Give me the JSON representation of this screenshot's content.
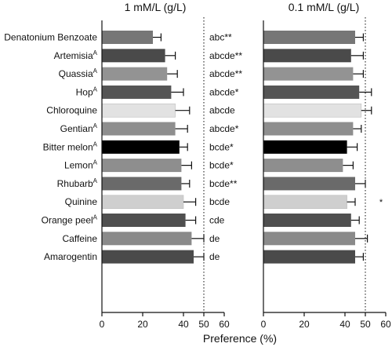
{
  "chart_data": {
    "type": "bar",
    "orientation": "horizontal",
    "xlabel": "Preference (%)",
    "xlim": [
      0,
      60
    ],
    "xticks": [
      0,
      20,
      40,
      50,
      60
    ],
    "reference_line": 50,
    "categories": [
      {
        "name": "Denatonium Benzoate",
        "sup": "",
        "color": "#767676",
        "letters": "abc**"
      },
      {
        "name": "Artemisia",
        "sup": "A",
        "color": "#4a4a4a",
        "letters": "abcde**"
      },
      {
        "name": "Quassia",
        "sup": "A",
        "color": "#939393",
        "letters": "abcde**"
      },
      {
        "name": "Hop",
        "sup": "A",
        "color": "#555555",
        "letters": "abcde*"
      },
      {
        "name": "Chloroquine",
        "sup": "",
        "color": "#e2e2e2",
        "letters": "abcde"
      },
      {
        "name": "Gentian",
        "sup": "A",
        "color": "#8e8e8e",
        "letters": "abcde*"
      },
      {
        "name": "Bitter melon",
        "sup": "A",
        "color": "#000000",
        "letters": "bcde*"
      },
      {
        "name": "Lemon",
        "sup": "A",
        "color": "#8e8e8e",
        "letters": "bcde*"
      },
      {
        "name": "Rhubarb",
        "sup": "A",
        "color": "#6a6a6a",
        "letters": "bcde**"
      },
      {
        "name": "Quinine",
        "sup": "",
        "color": "#cfcfcf",
        "letters": "bcde"
      },
      {
        "name": "Orange peel",
        "sup": "A",
        "color": "#4f4f4f",
        "letters": "cde"
      },
      {
        "name": "Caffeine",
        "sup": "",
        "color": "#8a8a8a",
        "letters": "de"
      },
      {
        "name": "Amarogentin",
        "sup": "",
        "color": "#4a4a4a",
        "letters": "de"
      }
    ],
    "panels": [
      {
        "title": "1 mM/L (g/L)",
        "values": [
          25,
          31,
          32,
          34,
          36,
          36,
          38,
          39,
          39,
          40,
          41,
          44,
          45
        ],
        "errors": [
          4,
          5,
          5,
          6,
          7,
          6,
          4,
          5,
          4,
          6,
          5,
          6,
          5
        ],
        "marks": [
          "",
          "",
          "",
          "",
          "",
          "",
          "",
          "",
          "",
          "",
          "",
          "",
          ""
        ]
      },
      {
        "title": "0.1 mM/L (g/L)",
        "values": [
          45,
          43,
          44,
          47,
          48,
          44,
          41,
          39,
          45,
          41,
          43,
          45,
          45
        ],
        "errors": [
          4,
          6,
          5,
          6,
          5,
          4,
          5,
          5,
          5,
          4,
          4,
          6,
          4
        ],
        "marks": [
          "",
          "",
          "",
          "",
          "",
          "",
          "",
          "",
          "",
          "*",
          "",
          "",
          ""
        ]
      }
    ]
  }
}
